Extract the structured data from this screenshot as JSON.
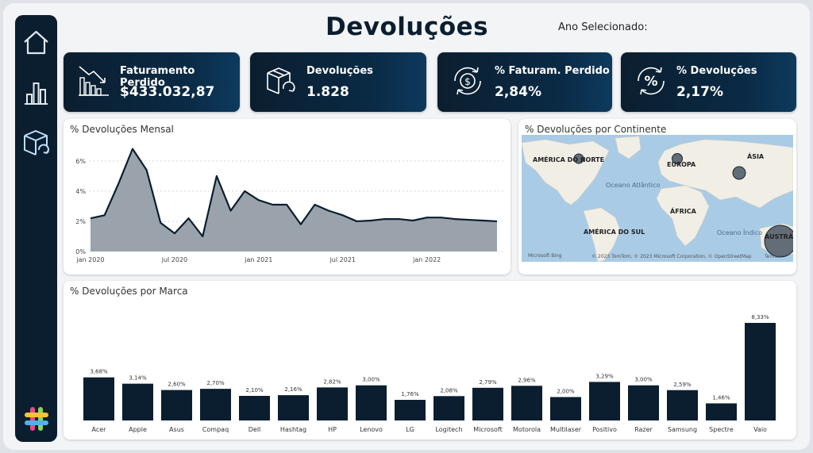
{
  "header": {
    "title": "Devoluções",
    "year_label": "Ano Selecionado:"
  },
  "sidebar": {
    "items": [
      {
        "icon": "home-icon"
      },
      {
        "icon": "bar-chart-icon"
      },
      {
        "icon": "returns-box-icon"
      }
    ],
    "logo": "hashtag-logo"
  },
  "kpis": [
    {
      "label": "Faturamento Perdido",
      "value": "$433.032,87",
      "icon": "declining-chart-icon"
    },
    {
      "label": "Devoluções",
      "value": "1.828",
      "icon": "return-box-icon"
    },
    {
      "label": "% Faturam. Perdido",
      "value": "2,84%",
      "icon": "money-cycle-icon"
    },
    {
      "label": "% Devoluções",
      "value": "2,17%",
      "icon": "percent-cycle-icon"
    }
  ],
  "monthly": {
    "title": "% Devoluções Mensal"
  },
  "map": {
    "title": "% Devoluções por Continente",
    "labels": {
      "north_america": "AMÉRICA DO NORTE",
      "europe": "EUROPA",
      "asia": "ÁSIA",
      "africa": "ÁFRICA",
      "south_america": "AMÉRICA DO SUL",
      "australia": "AUSTRÁ",
      "atlantic": "Oceano Atlântico",
      "indian": "Oceano Índico"
    },
    "attribution": "© 2023 TomTom, © 2023 Microsoft Corporation, © OpenStreetMap",
    "terms": "Terms",
    "bing": "Microsoft Bing"
  },
  "brands": {
    "title": "% Devoluções por Marca"
  },
  "chart_data": [
    {
      "type": "area",
      "title": "% Devoluções Mensal",
      "x": [
        "2020-01",
        "2020-02",
        "2020-03",
        "2020-04",
        "2020-05",
        "2020-06",
        "2020-07",
        "2020-08",
        "2020-09",
        "2020-10",
        "2020-11",
        "2020-12",
        "2021-01",
        "2021-02",
        "2021-03",
        "2021-04",
        "2021-05",
        "2021-06",
        "2021-07",
        "2021-08",
        "2021-09",
        "2021-10",
        "2021-11",
        "2021-12",
        "2022-01",
        "2022-02",
        "2022-03",
        "2022-04",
        "2022-05",
        "2022-06"
      ],
      "values": [
        2.2,
        2.4,
        4.5,
        6.8,
        5.4,
        1.9,
        1.2,
        2.2,
        1.0,
        5.0,
        2.7,
        4.0,
        3.4,
        3.1,
        3.1,
        1.8,
        3.1,
        2.7,
        2.4,
        2.0,
        2.05,
        2.15,
        2.15,
        2.05,
        2.25,
        2.25,
        2.15,
        2.1,
        2.05,
        2.0
      ],
      "x_ticks": [
        "jan 2020",
        "jul 2020",
        "jan 2021",
        "jul 2021",
        "jan 2022"
      ],
      "y_ticks": [
        "0%",
        "2%",
        "4%",
        "6%"
      ],
      "ylim": [
        0,
        7.2
      ],
      "grid": true,
      "colors": {
        "fill": "#9aa3ab",
        "line": "#0b1e2f"
      }
    },
    {
      "type": "bar",
      "title": "% Devoluções por Marca",
      "categories": [
        "Acer",
        "Apple",
        "Asus",
        "Compaq",
        "Dell",
        "Hashtag",
        "HP",
        "Lenovo",
        "LG",
        "Logitech",
        "Microsoft",
        "Motorola",
        "Multilaser",
        "Positivo",
        "Razer",
        "Samsung",
        "Spectre",
        "Vaio"
      ],
      "values": [
        3.68,
        3.14,
        2.6,
        2.7,
        2.1,
        2.16,
        2.82,
        3.0,
        1.76,
        2.08,
        2.79,
        2.96,
        2.0,
        3.29,
        3.0,
        2.59,
        1.46,
        8.33
      ],
      "labels": [
        "3,68%",
        "3,14%",
        "2,60%",
        "2,70%",
        "2,10%",
        "2,16%",
        "2,82%",
        "3,00%",
        "1,76%",
        "2,08%",
        "2,79%",
        "2,96%",
        "2,00%",
        "3,29%",
        "3,00%",
        "2,59%",
        "1,46%",
        "8,33%"
      ],
      "ylim": [
        0,
        8.33
      ],
      "colors": {
        "bar": "#0b1e2f"
      }
    }
  ]
}
